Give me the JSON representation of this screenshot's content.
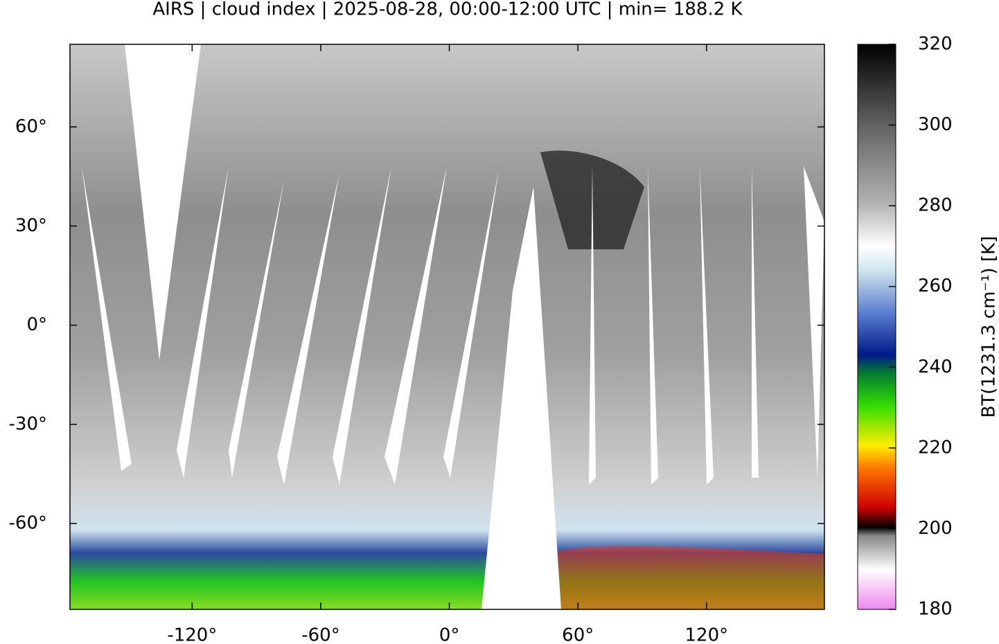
{
  "title": "AIRS | cloud index | 2025-08-28, 00:00-12:00 UTC | min= 188.2 K",
  "map": {
    "xlim": [
      -177,
      175
    ],
    "ylim": [
      -86,
      85
    ],
    "xticks": [
      {
        "value": -120,
        "label": "-120°"
      },
      {
        "value": -60,
        "label": "-60°"
      },
      {
        "value": 0,
        "label": "0°"
      },
      {
        "value": 60,
        "label": "60°"
      },
      {
        "value": 120,
        "label": "120°"
      }
    ],
    "yticks": [
      {
        "value": -60,
        "label": "-60°"
      },
      {
        "value": -30,
        "label": "-30°"
      },
      {
        "value": 0,
        "label": "0°"
      },
      {
        "value": 30,
        "label": "30°"
      },
      {
        "value": 60,
        "label": "60°"
      }
    ]
  },
  "colorbar": {
    "label": "BT(1231.3 cm⁻¹) [K]",
    "lim": [
      180,
      320
    ],
    "ticks": [
      180,
      200,
      220,
      240,
      260,
      280,
      300,
      320
    ]
  }
}
